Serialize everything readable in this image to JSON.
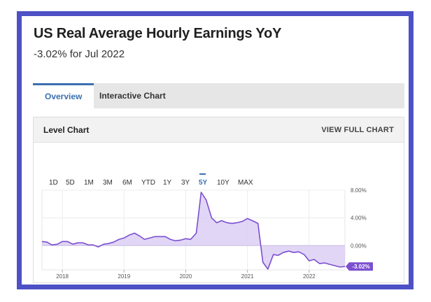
{
  "header": {
    "title": "US Real Average Hourly Earnings YoY",
    "subtitle": "-3.02% for Jul 2022"
  },
  "tabs": [
    {
      "label": "Overview",
      "active": true
    },
    {
      "label": "Interactive Chart",
      "active": false
    }
  ],
  "panel": {
    "title": "Level Chart",
    "link": "VIEW FULL CHART"
  },
  "ranges": [
    "1D",
    "5D",
    "1M",
    "3M",
    "6M",
    "YTD",
    "1Y",
    "3Y",
    "5Y",
    "10Y",
    "MAX"
  ],
  "selected_range": "5Y",
  "colors": {
    "frame": "#4d51c5",
    "accent": "#3a6fb0",
    "line": "#7b4fd0",
    "fill": "#d9ccf2",
    "badge": "#7b4fd0"
  },
  "chart_data": {
    "type": "area",
    "ylim": [
      -3.5,
      8.0
    ],
    "xlim": [
      2017.67,
      2022.58
    ],
    "yticks": [
      8,
      4,
      0
    ],
    "ytick_labels": [
      "8.00%",
      "4.00%",
      "0.00%"
    ],
    "xticks": [
      2018,
      2019,
      2020,
      2021,
      2022
    ],
    "xtick_labels": [
      "2018",
      "2019",
      "2020",
      "2021",
      "2022"
    ],
    "last_value_label": "-3.02%",
    "grid": true,
    "series": [
      {
        "x": [
          2017.67,
          2017.75,
          2017.83,
          2017.92,
          2018.0,
          2018.08,
          2018.17,
          2018.25,
          2018.33,
          2018.42,
          2018.5,
          2018.58,
          2018.67,
          2018.75,
          2018.83,
          2018.92,
          2019.0,
          2019.08,
          2019.17,
          2019.25,
          2019.33,
          2019.42,
          2019.5,
          2019.58,
          2019.67,
          2019.75,
          2019.83,
          2019.92,
          2020.0,
          2020.08,
          2020.17,
          2020.25,
          2020.33,
          2020.42,
          2020.5,
          2020.58,
          2020.67,
          2020.75,
          2020.83,
          2020.92,
          2021.0,
          2021.08,
          2021.17,
          2021.25,
          2021.33,
          2021.42,
          2021.5,
          2021.58,
          2021.67,
          2021.75,
          2021.83,
          2021.92,
          2022.0,
          2022.08,
          2022.17,
          2022.25,
          2022.33,
          2022.42,
          2022.5,
          2022.58
        ],
        "values": [
          0.6,
          0.5,
          0.1,
          0.2,
          0.6,
          0.6,
          0.2,
          0.4,
          0.4,
          0.1,
          0.1,
          -0.2,
          0.2,
          0.3,
          0.5,
          0.9,
          1.1,
          1.5,
          1.8,
          1.4,
          0.9,
          1.1,
          1.3,
          1.3,
          1.3,
          0.9,
          0.7,
          0.8,
          1.0,
          0.9,
          1.8,
          7.7,
          6.6,
          4.0,
          3.3,
          3.6,
          3.3,
          3.2,
          3.3,
          3.5,
          3.9,
          3.6,
          3.2,
          -2.4,
          -3.4,
          -1.3,
          -1.4,
          -1.0,
          -0.8,
          -1.0,
          -0.9,
          -1.3,
          -2.2,
          -2.0,
          -2.6,
          -2.5,
          -2.7,
          -2.9,
          -3.1,
          -3.02
        ]
      }
    ]
  }
}
